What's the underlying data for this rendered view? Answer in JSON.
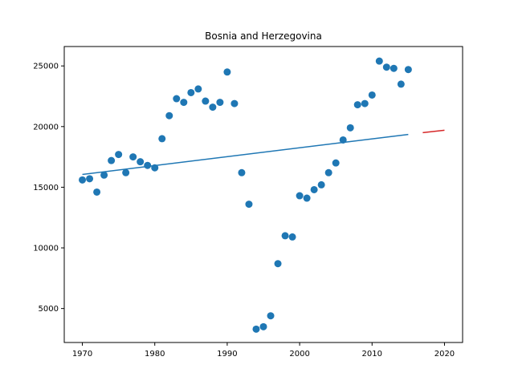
{
  "chart_data": {
    "type": "scatter",
    "title": "Bosnia and Herzegovina",
    "xlabel": "",
    "ylabel": "",
    "xlim": [
      1967.5,
      2022.5
    ],
    "ylim": [
      2200,
      26600
    ],
    "xticks": [
      1970,
      1980,
      1990,
      2000,
      2010,
      2020
    ],
    "yticks": [
      5000,
      10000,
      15000,
      20000,
      25000
    ],
    "grid": false,
    "colors": {
      "points": "#1f77b4",
      "trend": "#1f77b4",
      "forecast": "#d62728"
    },
    "points": {
      "x": [
        1970,
        1971,
        1972,
        1973,
        1974,
        1975,
        1976,
        1977,
        1978,
        1979,
        1980,
        1981,
        1982,
        1983,
        1984,
        1985,
        1986,
        1987,
        1988,
        1989,
        1990,
        1991,
        1992,
        1993,
        1994,
        1995,
        1996,
        1997,
        1998,
        1999,
        2000,
        2001,
        2002,
        2003,
        2004,
        2005,
        2006,
        2007,
        2008,
        2009,
        2010,
        2011,
        2012,
        2013,
        2014,
        2015
      ],
      "y": [
        15600,
        15700,
        14600,
        16000,
        17200,
        17700,
        16200,
        17500,
        17100,
        16800,
        16600,
        19000,
        20900,
        22300,
        22000,
        22800,
        23100,
        22100,
        21600,
        22000,
        24500,
        21900,
        16200,
        13600,
        3300,
        3500,
        4400,
        8700,
        11000,
        10900,
        14300,
        14100,
        14800,
        15200,
        16200,
        17000,
        18900,
        19900,
        21800,
        21900,
        22600,
        25400,
        24900,
        24800,
        23500,
        24700
      ]
    },
    "trend_line": {
      "x": [
        1970,
        2015
      ],
      "y": [
        16050,
        19350
      ]
    },
    "forecast_line": {
      "x": [
        2017,
        2020
      ],
      "y": [
        19500,
        19700
      ]
    }
  }
}
